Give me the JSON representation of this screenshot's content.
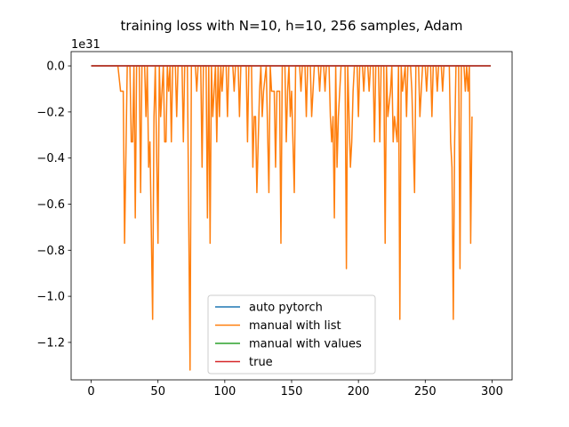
{
  "chart_data": {
    "type": "line",
    "title": "training loss with N=10, h=10, 256 samples, Adam",
    "xlabel": "",
    "ylabel": "",
    "y_offset_text": "1e31",
    "xlim": [
      -15,
      315
    ],
    "ylim": [
      -1.3625,
      0.062
    ],
    "x_ticks": [
      0,
      50,
      100,
      150,
      200,
      250,
      300
    ],
    "x_tick_labels": [
      "0",
      "50",
      "100",
      "150",
      "200",
      "250",
      "300"
    ],
    "y_ticks": [
      0.0,
      -0.2,
      -0.4,
      -0.6,
      -0.8,
      -1.0,
      -1.2
    ],
    "y_tick_labels": [
      "0.0",
      "−0.2",
      "−0.4",
      "−0.6",
      "−0.8",
      "−1.0",
      "−1.2"
    ],
    "grid": false,
    "legend_position": "lower center",
    "series": [
      {
        "name": "auto pytorch",
        "color": "#1f77b4",
        "x": [
          0,
          299
        ],
        "y": [
          0,
          0
        ]
      },
      {
        "name": "manual with list",
        "color": "#ff7f0e",
        "points": [
          [
            0,
            0
          ],
          [
            20,
            0
          ],
          [
            22,
            -0.11
          ],
          [
            24,
            -0.11
          ],
          [
            25,
            -0.77
          ],
          [
            27,
            0
          ],
          [
            29,
            0
          ],
          [
            30,
            -0.33
          ],
          [
            31,
            -0.33
          ],
          [
            32,
            0
          ],
          [
            33,
            -0.66
          ],
          [
            34,
            0
          ],
          [
            36,
            0
          ],
          [
            37,
            -0.55
          ],
          [
            38,
            0
          ],
          [
            40,
            0
          ],
          [
            41,
            -0.22
          ],
          [
            42,
            0
          ],
          [
            43,
            -0.44
          ],
          [
            44,
            -0.33
          ],
          [
            46,
            -1.1
          ],
          [
            47,
            -0.22
          ],
          [
            48,
            0
          ],
          [
            50,
            -0.77
          ],
          [
            51,
            0
          ],
          [
            52,
            -0.22
          ],
          [
            53,
            -0.11
          ],
          [
            54,
            0
          ],
          [
            55,
            -0.33
          ],
          [
            56,
            -0.33
          ],
          [
            57,
            0
          ],
          [
            58,
            -0.11
          ],
          [
            59,
            0
          ],
          [
            60,
            -0.33
          ],
          [
            61,
            0
          ],
          [
            63,
            0
          ],
          [
            64,
            -0.22
          ],
          [
            65,
            0
          ],
          [
            68,
            0
          ],
          [
            69,
            -0.33
          ],
          [
            70,
            0
          ],
          [
            72,
            0
          ],
          [
            74,
            -1.32
          ],
          [
            75,
            0
          ],
          [
            78,
            0
          ],
          [
            79,
            -0.11
          ],
          [
            80,
            0
          ],
          [
            82,
            0
          ],
          [
            83,
            -0.44
          ],
          [
            84,
            0
          ],
          [
            86,
            0
          ],
          [
            87,
            -0.66
          ],
          [
            88,
            0
          ],
          [
            89,
            -0.77
          ],
          [
            90,
            0
          ],
          [
            91,
            -0.22
          ],
          [
            92,
            -0.11
          ],
          [
            93,
            0
          ],
          [
            94,
            -0.33
          ],
          [
            95,
            0
          ],
          [
            96,
            -0.22
          ],
          [
            97,
            0
          ],
          [
            98,
            -0.11
          ],
          [
            99,
            0
          ],
          [
            101,
            0
          ],
          [
            102,
            -0.22
          ],
          [
            103,
            0
          ],
          [
            106,
            0
          ],
          [
            107,
            -0.11
          ],
          [
            108,
            0
          ],
          [
            110,
            0
          ],
          [
            111,
            -0.22
          ],
          [
            112,
            0
          ],
          [
            116,
            0
          ],
          [
            117,
            -0.33
          ],
          [
            118,
            0
          ],
          [
            120,
            0
          ],
          [
            121,
            -0.44
          ],
          [
            122,
            -0.22
          ],
          [
            123,
            -0.22
          ],
          [
            124,
            -0.55
          ],
          [
            125,
            -0.33
          ],
          [
            126,
            -0.11
          ],
          [
            127,
            0
          ],
          [
            128,
            -0.22
          ],
          [
            129,
            -0.11
          ],
          [
            131,
            0
          ],
          [
            133,
            -0.55
          ],
          [
            134,
            0
          ],
          [
            135,
            -0.11
          ],
          [
            137,
            -0.11
          ],
          [
            138,
            -0.44
          ],
          [
            139,
            -0.11
          ],
          [
            141,
            -0.11
          ],
          [
            142,
            -0.77
          ],
          [
            143,
            0
          ],
          [
            145,
            0
          ],
          [
            146,
            -0.33
          ],
          [
            147,
            -0.11
          ],
          [
            148,
            0
          ],
          [
            149,
            -0.22
          ],
          [
            150,
            -0.11
          ],
          [
            151,
            -0.33
          ],
          [
            152,
            -0.55
          ],
          [
            153,
            0
          ],
          [
            156,
            0
          ],
          [
            157,
            -0.11
          ],
          [
            158,
            0
          ],
          [
            160,
            0
          ],
          [
            161,
            -0.22
          ],
          [
            162,
            0
          ],
          [
            164,
            0
          ],
          [
            165,
            -0.22
          ],
          [
            166,
            -0.11
          ],
          [
            167,
            0
          ],
          [
            170,
            0
          ],
          [
            171,
            -0.11
          ],
          [
            172,
            0
          ],
          [
            174,
            0
          ],
          [
            175,
            -0.11
          ],
          [
            176,
            0
          ],
          [
            178,
            0
          ],
          [
            179,
            -0.22
          ],
          [
            180,
            -0.33
          ],
          [
            181,
            -0.22
          ],
          [
            182,
            -0.66
          ],
          [
            183,
            0
          ],
          [
            184,
            -0.44
          ],
          [
            185,
            -0.22
          ],
          [
            186,
            -0.11
          ],
          [
            187,
            0
          ],
          [
            190,
            0
          ],
          [
            191,
            -0.88
          ],
          [
            192,
            0
          ],
          [
            193,
            -0.22
          ],
          [
            194,
            -0.44
          ],
          [
            195,
            -0.33
          ],
          [
            196,
            -0.11
          ],
          [
            197,
            0
          ],
          [
            199,
            0
          ],
          [
            200,
            -0.22
          ],
          [
            201,
            0
          ],
          [
            203,
            0
          ],
          [
            204,
            -0.11
          ],
          [
            205,
            0
          ],
          [
            207,
            0
          ],
          [
            208,
            -0.11
          ],
          [
            209,
            0
          ],
          [
            211,
            0
          ],
          [
            212,
            -0.33
          ],
          [
            213,
            0
          ],
          [
            215,
            0
          ],
          [
            216,
            -0.33
          ],
          [
            217,
            0
          ],
          [
            219,
            0
          ],
          [
            220,
            -0.77
          ],
          [
            221,
            0
          ],
          [
            222,
            -0.22
          ],
          [
            224,
            -0.11
          ],
          [
            225,
            0
          ],
          [
            226,
            -0.33
          ],
          [
            227,
            -0.22
          ],
          [
            229,
            -0.33
          ],
          [
            230,
            0
          ],
          [
            231,
            -1.1
          ],
          [
            232,
            0
          ],
          [
            233,
            -0.11
          ],
          [
            235,
            0
          ],
          [
            236,
            -0.22
          ],
          [
            237,
            0
          ],
          [
            239,
            0
          ],
          [
            240,
            -0.11
          ],
          [
            241,
            -0.33
          ],
          [
            242,
            -0.55
          ],
          [
            243,
            0
          ],
          [
            245,
            0
          ],
          [
            246,
            -0.22
          ],
          [
            247,
            -0.11
          ],
          [
            248,
            0
          ],
          [
            250,
            0
          ],
          [
            251,
            -0.11
          ],
          [
            252,
            0
          ],
          [
            254,
            0
          ],
          [
            255,
            -0.22
          ],
          [
            256,
            0
          ],
          [
            258,
            0
          ],
          [
            259,
            -0.11
          ],
          [
            260,
            0
          ],
          [
            262,
            0
          ],
          [
            263,
            -0.11
          ],
          [
            264,
            0
          ],
          [
            268,
            0
          ],
          [
            269,
            -0.33
          ],
          [
            270,
            -0.44
          ],
          [
            271,
            -1.1
          ],
          [
            272,
            -0.33
          ],
          [
            273,
            0
          ],
          [
            275,
            0
          ],
          [
            276,
            -0.88
          ],
          [
            277,
            0
          ],
          [
            279,
            0
          ],
          [
            280,
            -0.11
          ],
          [
            281,
            0
          ],
          [
            282,
            -0.11
          ],
          [
            283,
            0
          ],
          [
            284,
            -0.77
          ],
          [
            285,
            -0.22
          ]
        ]
      },
      {
        "name": "manual with values",
        "color": "#2ca02c",
        "x": [
          0,
          299
        ],
        "y": [
          0,
          0
        ]
      },
      {
        "name": "true",
        "color": "#d62728",
        "x": [
          0,
          299
        ],
        "y": [
          0,
          0
        ]
      }
    ]
  }
}
